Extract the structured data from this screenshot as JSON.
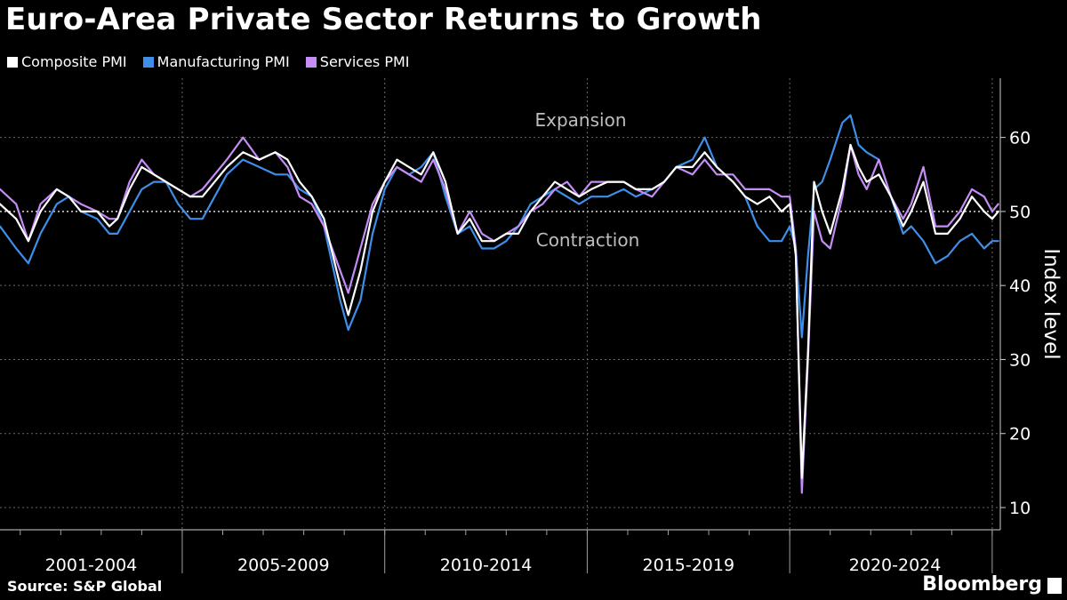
{
  "title": "Euro-Area Private Sector Returns to Growth",
  "source": "Source: S&P Global",
  "brand": "Bloomberg",
  "chart_data": {
    "type": "line",
    "ylabel": "Index level",
    "ylim": [
      7,
      68
    ],
    "yticks": [
      10,
      20,
      30,
      40,
      50,
      60
    ],
    "reference_line": 50,
    "annotations": [
      "Expansion",
      "Contraction"
    ],
    "x_range": [
      2000.5,
      2025.2
    ],
    "x_groups": [
      {
        "label": "2001-2004",
        "start": 2000.5,
        "end": 2005.0
      },
      {
        "label": "2005-2009",
        "start": 2005.0,
        "end": 2010.0
      },
      {
        "label": "2010-2014",
        "start": 2010.0,
        "end": 2015.0
      },
      {
        "label": "2015-2019",
        "start": 2015.0,
        "end": 2020.0
      },
      {
        "label": "2020-2024",
        "start": 2020.0,
        "end": 2025.2
      }
    ],
    "series": [
      {
        "name": "Composite PMI",
        "color": "#ffffff",
        "points": [
          [
            2000.5,
            51
          ],
          [
            2000.9,
            49
          ],
          [
            2001.2,
            46
          ],
          [
            2001.5,
            50
          ],
          [
            2001.9,
            53
          ],
          [
            2002.2,
            52
          ],
          [
            2002.5,
            50
          ],
          [
            2002.9,
            50
          ],
          [
            2003.2,
            48
          ],
          [
            2003.4,
            49
          ],
          [
            2003.7,
            53
          ],
          [
            2004.0,
            56
          ],
          [
            2004.3,
            55
          ],
          [
            2004.6,
            54
          ],
          [
            2004.9,
            53
          ],
          [
            2005.2,
            52
          ],
          [
            2005.5,
            52
          ],
          [
            2005.8,
            54
          ],
          [
            2006.1,
            56
          ],
          [
            2006.5,
            58
          ],
          [
            2006.9,
            57
          ],
          [
            2007.3,
            58
          ],
          [
            2007.6,
            57
          ],
          [
            2007.9,
            54
          ],
          [
            2008.2,
            52
          ],
          [
            2008.5,
            49
          ],
          [
            2008.9,
            40
          ],
          [
            2009.1,
            36
          ],
          [
            2009.4,
            42
          ],
          [
            2009.7,
            50
          ],
          [
            2010.0,
            54
          ],
          [
            2010.3,
            57
          ],
          [
            2010.6,
            56
          ],
          [
            2010.9,
            55
          ],
          [
            2011.2,
            58
          ],
          [
            2011.5,
            54
          ],
          [
            2011.8,
            47
          ],
          [
            2012.1,
            49
          ],
          [
            2012.4,
            46
          ],
          [
            2012.7,
            46
          ],
          [
            2013.0,
            47
          ],
          [
            2013.3,
            47
          ],
          [
            2013.6,
            50
          ],
          [
            2013.9,
            52
          ],
          [
            2014.2,
            54
          ],
          [
            2014.5,
            53
          ],
          [
            2014.8,
            52
          ],
          [
            2015.1,
            53
          ],
          [
            2015.5,
            54
          ],
          [
            2015.9,
            54
          ],
          [
            2016.2,
            53
          ],
          [
            2016.6,
            53
          ],
          [
            2016.9,
            54
          ],
          [
            2017.2,
            56
          ],
          [
            2017.6,
            56
          ],
          [
            2017.9,
            58
          ],
          [
            2018.2,
            56
          ],
          [
            2018.6,
            54
          ],
          [
            2018.9,
            52
          ],
          [
            2019.2,
            51
          ],
          [
            2019.5,
            52
          ],
          [
            2019.8,
            50
          ],
          [
            2020.0,
            51
          ],
          [
            2020.15,
            44
          ],
          [
            2020.3,
            14
          ],
          [
            2020.45,
            31
          ],
          [
            2020.6,
            54
          ],
          [
            2020.8,
            50
          ],
          [
            2021.0,
            47
          ],
          [
            2021.3,
            53
          ],
          [
            2021.5,
            59
          ],
          [
            2021.7,
            56
          ],
          [
            2021.9,
            54
          ],
          [
            2022.2,
            55
          ],
          [
            2022.5,
            52
          ],
          [
            2022.8,
            48
          ],
          [
            2023.0,
            50
          ],
          [
            2023.3,
            54
          ],
          [
            2023.6,
            47
          ],
          [
            2023.9,
            47
          ],
          [
            2024.2,
            49
          ],
          [
            2024.5,
            52
          ],
          [
            2024.8,
            50
          ],
          [
            2025.0,
            49
          ],
          [
            2025.15,
            50
          ]
        ]
      },
      {
        "name": "Manufacturing PMI",
        "color": "#3f8ee8",
        "points": [
          [
            2000.5,
            48
          ],
          [
            2000.9,
            45
          ],
          [
            2001.2,
            43
          ],
          [
            2001.5,
            47
          ],
          [
            2001.9,
            51
          ],
          [
            2002.2,
            52
          ],
          [
            2002.5,
            50
          ],
          [
            2002.9,
            49
          ],
          [
            2003.2,
            47
          ],
          [
            2003.4,
            47
          ],
          [
            2003.7,
            50
          ],
          [
            2004.0,
            53
          ],
          [
            2004.3,
            54
          ],
          [
            2004.6,
            54
          ],
          [
            2004.9,
            51
          ],
          [
            2005.2,
            49
          ],
          [
            2005.5,
            49
          ],
          [
            2005.8,
            52
          ],
          [
            2006.1,
            55
          ],
          [
            2006.5,
            57
          ],
          [
            2006.9,
            56
          ],
          [
            2007.3,
            55
          ],
          [
            2007.6,
            55
          ],
          [
            2007.9,
            53
          ],
          [
            2008.2,
            52
          ],
          [
            2008.5,
            48
          ],
          [
            2008.9,
            38
          ],
          [
            2009.1,
            34
          ],
          [
            2009.4,
            38
          ],
          [
            2009.7,
            47
          ],
          [
            2010.0,
            53
          ],
          [
            2010.3,
            56
          ],
          [
            2010.6,
            55
          ],
          [
            2010.9,
            56
          ],
          [
            2011.2,
            58
          ],
          [
            2011.5,
            52
          ],
          [
            2011.8,
            47
          ],
          [
            2012.1,
            48
          ],
          [
            2012.4,
            45
          ],
          [
            2012.7,
            45
          ],
          [
            2013.0,
            46
          ],
          [
            2013.3,
            48
          ],
          [
            2013.6,
            51
          ],
          [
            2013.9,
            52
          ],
          [
            2014.2,
            53
          ],
          [
            2014.5,
            52
          ],
          [
            2014.8,
            51
          ],
          [
            2015.1,
            52
          ],
          [
            2015.5,
            52
          ],
          [
            2015.9,
            53
          ],
          [
            2016.2,
            52
          ],
          [
            2016.6,
            53
          ],
          [
            2016.9,
            54
          ],
          [
            2017.2,
            56
          ],
          [
            2017.6,
            57
          ],
          [
            2017.9,
            60
          ],
          [
            2018.2,
            56
          ],
          [
            2018.6,
            54
          ],
          [
            2018.9,
            52
          ],
          [
            2019.2,
            48
          ],
          [
            2019.5,
            46
          ],
          [
            2019.8,
            46
          ],
          [
            2020.0,
            48
          ],
          [
            2020.15,
            45
          ],
          [
            2020.3,
            33
          ],
          [
            2020.45,
            44
          ],
          [
            2020.6,
            53
          ],
          [
            2020.8,
            54
          ],
          [
            2021.0,
            57
          ],
          [
            2021.3,
            62
          ],
          [
            2021.5,
            63
          ],
          [
            2021.7,
            59
          ],
          [
            2021.9,
            58
          ],
          [
            2022.2,
            57
          ],
          [
            2022.5,
            52
          ],
          [
            2022.8,
            47
          ],
          [
            2023.0,
            48
          ],
          [
            2023.3,
            46
          ],
          [
            2023.6,
            43
          ],
          [
            2023.9,
            44
          ],
          [
            2024.2,
            46
          ],
          [
            2024.5,
            47
          ],
          [
            2024.8,
            45
          ],
          [
            2025.0,
            46
          ],
          [
            2025.15,
            46
          ]
        ]
      },
      {
        "name": "Services PMI",
        "color": "#c58df5",
        "points": [
          [
            2000.5,
            53
          ],
          [
            2000.9,
            51
          ],
          [
            2001.2,
            46
          ],
          [
            2001.5,
            51
          ],
          [
            2001.9,
            53
          ],
          [
            2002.2,
            52
          ],
          [
            2002.5,
            51
          ],
          [
            2002.9,
            50
          ],
          [
            2003.2,
            49
          ],
          [
            2003.4,
            49
          ],
          [
            2003.7,
            54
          ],
          [
            2004.0,
            57
          ],
          [
            2004.3,
            55
          ],
          [
            2004.6,
            54
          ],
          [
            2004.9,
            53
          ],
          [
            2005.2,
            52
          ],
          [
            2005.5,
            53
          ],
          [
            2005.8,
            55
          ],
          [
            2006.1,
            57
          ],
          [
            2006.5,
            60
          ],
          [
            2006.9,
            57
          ],
          [
            2007.3,
            58
          ],
          [
            2007.6,
            56
          ],
          [
            2007.9,
            52
          ],
          [
            2008.2,
            51
          ],
          [
            2008.5,
            48
          ],
          [
            2008.9,
            42
          ],
          [
            2009.1,
            39
          ],
          [
            2009.4,
            45
          ],
          [
            2009.7,
            51
          ],
          [
            2010.0,
            54
          ],
          [
            2010.3,
            56
          ],
          [
            2010.6,
            55
          ],
          [
            2010.9,
            54
          ],
          [
            2011.2,
            57
          ],
          [
            2011.5,
            53
          ],
          [
            2011.8,
            47
          ],
          [
            2012.1,
            50
          ],
          [
            2012.4,
            47
          ],
          [
            2012.7,
            46
          ],
          [
            2013.0,
            47
          ],
          [
            2013.3,
            48
          ],
          [
            2013.6,
            50
          ],
          [
            2013.9,
            51
          ],
          [
            2014.2,
            53
          ],
          [
            2014.5,
            54
          ],
          [
            2014.8,
            52
          ],
          [
            2015.1,
            54
          ],
          [
            2015.5,
            54
          ],
          [
            2015.9,
            54
          ],
          [
            2016.2,
            53
          ],
          [
            2016.6,
            52
          ],
          [
            2016.9,
            54
          ],
          [
            2017.2,
            56
          ],
          [
            2017.6,
            55
          ],
          [
            2017.9,
            57
          ],
          [
            2018.2,
            55
          ],
          [
            2018.6,
            55
          ],
          [
            2018.9,
            53
          ],
          [
            2019.2,
            53
          ],
          [
            2019.5,
            53
          ],
          [
            2019.8,
            52
          ],
          [
            2020.0,
            52
          ],
          [
            2020.15,
            45
          ],
          [
            2020.3,
            12
          ],
          [
            2020.45,
            30
          ],
          [
            2020.6,
            50
          ],
          [
            2020.8,
            46
          ],
          [
            2021.0,
            45
          ],
          [
            2021.3,
            52
          ],
          [
            2021.5,
            59
          ],
          [
            2021.7,
            55
          ],
          [
            2021.9,
            53
          ],
          [
            2022.2,
            57
          ],
          [
            2022.5,
            52
          ],
          [
            2022.8,
            49
          ],
          [
            2023.0,
            51
          ],
          [
            2023.3,
            56
          ],
          [
            2023.6,
            48
          ],
          [
            2023.9,
            48
          ],
          [
            2024.2,
            50
          ],
          [
            2024.5,
            53
          ],
          [
            2024.8,
            52
          ],
          [
            2025.0,
            50
          ],
          [
            2025.15,
            51
          ]
        ]
      }
    ]
  }
}
